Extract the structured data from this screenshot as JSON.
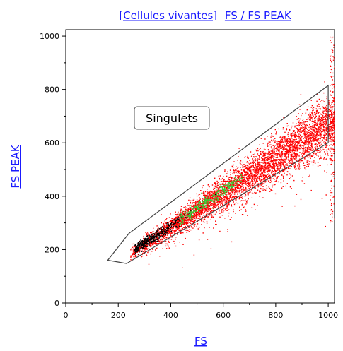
{
  "header": {
    "population_link": "[Cellules vivantes]",
    "plot_link": "FS / FS PEAK"
  },
  "chart_data": {
    "type": "scatter",
    "title": "[Cellules vivantes] FS / FS PEAK",
    "xlabel": "FS",
    "ylabel": "FS PEAK",
    "xlim": [
      0,
      1024
    ],
    "ylim": [
      0,
      1024
    ],
    "x_ticks": [
      0,
      200,
      400,
      600,
      800,
      1000
    ],
    "y_ticks": [
      0,
      200,
      400,
      600,
      800,
      1000
    ],
    "grid": false,
    "series": [
      {
        "color": "#ff0000",
        "distribution": {
          "x_range": [
            245,
            1024
          ],
          "slope": 0.64,
          "intercept": 30
        }
      },
      {
        "color": "#000000",
        "distribution": {
          "x_range": [
            250,
            520
          ]
        }
      },
      {
        "color": "#33cc33",
        "distribution": {
          "x_range": [
            420,
            680
          ]
        }
      }
    ],
    "gate": {
      "label": "Singulets",
      "polygon": [
        [
          160,
          160
        ],
        [
          232,
          148
        ],
        [
          1000,
          600
        ],
        [
          1000,
          815
        ],
        [
          240,
          260
        ]
      ]
    }
  }
}
